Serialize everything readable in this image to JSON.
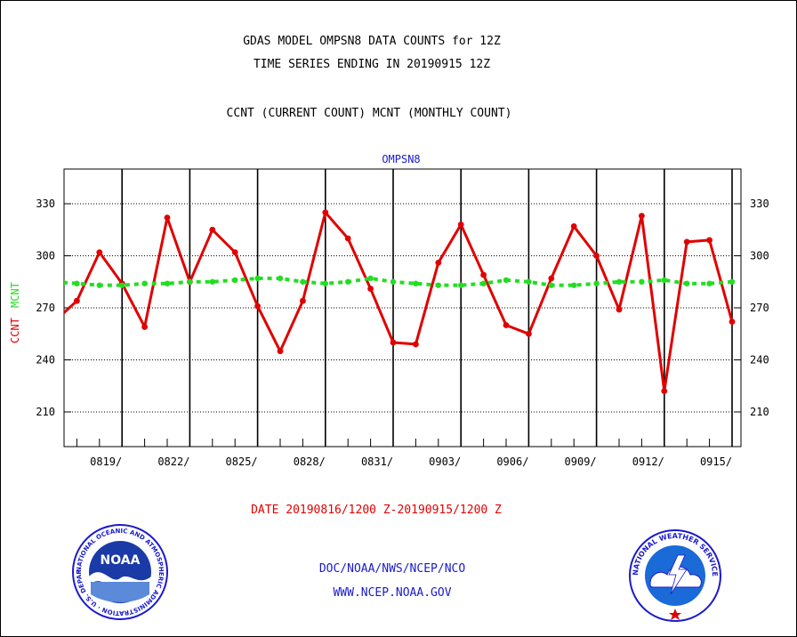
{
  "page": {
    "title_line1": "GDAS MODEL OMPSN8 DATA COUNTS for 12Z",
    "title_line2": "TIME SERIES ENDING IN 20190915 12Z",
    "subtitle": "CCNT (CURRENT COUNT) MCNT (MONTHLY COUNT)",
    "date_range": "DATE 20190816/1200 Z-20190915/1200 Z",
    "footer_org": "DOC/NOAA/NWS/NCEP/NCO",
    "footer_url": "WWW.NCEP.NOAA.GOV",
    "logos": {
      "noaa": {
        "center_text": "NOAA",
        "ring_text": "NATIONAL OCEANIC AND ATMOSPHERIC ADMINISTRATION · U.S. DEPARTMENT OF COMMERCE"
      },
      "nws": {
        "ring_text": "NATIONAL WEATHER SERVICE"
      }
    },
    "colors": {
      "ccnt": "#e00000",
      "mcnt": "#22dd22",
      "label_blue": "#1a1acc",
      "grid": "#000000"
    }
  },
  "chart_data": {
    "type": "line",
    "title": "OMPSN8",
    "ylabel_ccnt": "CCNT",
    "ylabel_mcnt": "MCNT",
    "ylim": [
      190,
      350
    ],
    "yticks": [
      210,
      240,
      270,
      300,
      330
    ],
    "x_start_day": "0816",
    "x_end_day": "0915",
    "xticks": [
      {
        "label": "0819/",
        "day": 3
      },
      {
        "label": "0822/",
        "day": 6
      },
      {
        "label": "0825/",
        "day": 9
      },
      {
        "label": "0828/",
        "day": 12
      },
      {
        "label": "0831/",
        "day": 15
      },
      {
        "label": "0903/",
        "day": 18
      },
      {
        "label": "0906/",
        "day": 21
      },
      {
        "label": "0909/",
        "day": 24
      },
      {
        "label": "0912/",
        "day": 27
      },
      {
        "label": "0915/",
        "day": 30
      }
    ],
    "grid": true,
    "series": [
      {
        "name": "CCNT",
        "color": "#e00000",
        "x": [
          0,
          1,
          2,
          3,
          4,
          5,
          6,
          7,
          8,
          9,
          10,
          11,
          12,
          13,
          14,
          15,
          16,
          17,
          18,
          19,
          20,
          21,
          22,
          23,
          24,
          25,
          26,
          27,
          28,
          29,
          30
        ],
        "values": [
          262,
          274,
          302,
          284,
          259,
          322,
          285,
          315,
          302,
          271,
          245,
          274,
          325,
          310,
          281,
          250,
          249,
          296,
          318,
          289,
          260,
          255,
          287,
          317,
          300,
          269,
          323,
          222,
          308,
          309,
          262
        ]
      },
      {
        "name": "MCNT",
        "color": "#22dd22",
        "x": [
          0,
          1,
          2,
          3,
          4,
          5,
          6,
          7,
          8,
          9,
          10,
          11,
          12,
          13,
          14,
          15,
          16,
          17,
          18,
          19,
          20,
          21,
          22,
          23,
          24,
          25,
          26,
          27,
          28,
          29,
          30
        ],
        "values": [
          285,
          284,
          283,
          283,
          284,
          284,
          285,
          285,
          286,
          287,
          287,
          285,
          284,
          285,
          287,
          285,
          284,
          283,
          283,
          284,
          286,
          285,
          283,
          283,
          284,
          285,
          285,
          286,
          284,
          284,
          285
        ]
      }
    ]
  }
}
